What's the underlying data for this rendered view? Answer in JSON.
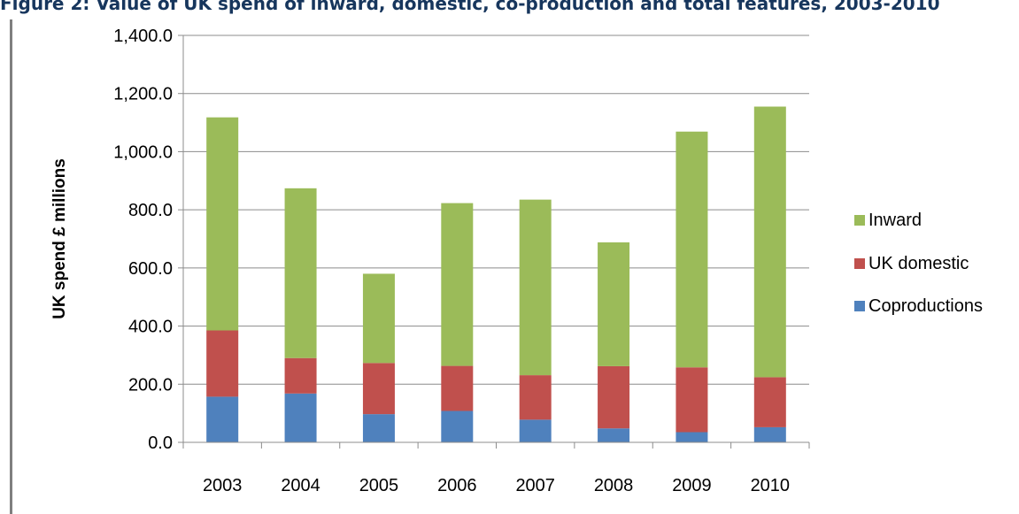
{
  "title": "Figure 2: Value of UK spend of inward, domestic, co-production and total features, 2003-2010",
  "chart_data": {
    "type": "bar",
    "stacked": true,
    "categories": [
      "2003",
      "2004",
      "2005",
      "2006",
      "2007",
      "2008",
      "2009",
      "2010"
    ],
    "series": [
      {
        "name": "Coproductions",
        "color": "#4f81bd",
        "values": [
          157,
          168,
          97,
          108,
          78,
          48,
          35,
          52
        ]
      },
      {
        "name": "UK domestic",
        "color": "#c0504d",
        "values": [
          228,
          122,
          176,
          155,
          153,
          214,
          223,
          172
        ]
      },
      {
        "name": "Inward",
        "color": "#9bbb59",
        "values": [
          733,
          584,
          307,
          560,
          604,
          426,
          811,
          931
        ]
      }
    ],
    "ylabel": "UK spend £ millions",
    "xlabel": "",
    "ylim": [
      0,
      1400
    ],
    "yticks": [
      "0.0",
      "200.0",
      "400.0",
      "600.0",
      "800.0",
      "1,000.0",
      "1,200.0",
      "1,400.0"
    ],
    "grid": true,
    "legend_position": "right",
    "legend_order": [
      "Inward",
      "UK domestic",
      "Coproductions"
    ]
  }
}
